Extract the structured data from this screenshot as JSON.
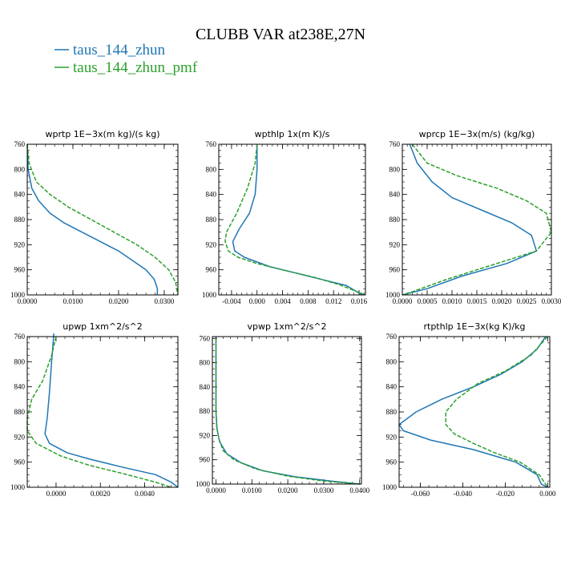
{
  "title": "CLUBB VAR at238E,27N",
  "legend": [
    {
      "label": "taus_144_zhun",
      "color": "#1f77b4",
      "dash": "solid"
    },
    {
      "label": "taus_144_zhun_pmf",
      "color": "#2ca02c",
      "dash": "dashed"
    }
  ],
  "chart_data": [
    {
      "type": "line",
      "title": "wprtp   1E−3x(m kg)/(s kg)",
      "xlim": [
        0,
        0.033
      ],
      "ylim": [
        760,
        1000
      ],
      "xticks": [
        0,
        0.01,
        0.02,
        0.03
      ],
      "xtick_labels": [
        "0.0000",
        "0.0100",
        "0.0200",
        "0.0300"
      ],
      "yticks": [
        760,
        800,
        840,
        880,
        920,
        960,
        1000
      ],
      "series": [
        {
          "name": "taus_144_zhun",
          "points": [
            [
              0,
              760
            ],
            [
              0.0002,
              800
            ],
            [
              0.001,
              830
            ],
            [
              0.0025,
              850
            ],
            [
              0.005,
              870
            ],
            [
              0.008,
              885
            ],
            [
              0.012,
              900
            ],
            [
              0.016,
              915
            ],
            [
              0.02,
              930
            ],
            [
              0.023,
              945
            ],
            [
              0.026,
              960
            ],
            [
              0.0278,
              975
            ],
            [
              0.0285,
              990
            ],
            [
              0.0285,
              1000
            ]
          ]
        },
        {
          "name": "taus_144_zhun_pmf",
          "points": [
            [
              0,
              760
            ],
            [
              0.0004,
              790
            ],
            [
              0.002,
              820
            ],
            [
              0.005,
              840
            ],
            [
              0.009,
              860
            ],
            [
              0.014,
              880
            ],
            [
              0.019,
              900
            ],
            [
              0.024,
              920
            ],
            [
              0.028,
              940
            ],
            [
              0.031,
              960
            ],
            [
              0.0325,
              980
            ],
            [
              0.033,
              1000
            ]
          ]
        }
      ]
    },
    {
      "type": "line",
      "title": "wpthlp   1x(m K)/s",
      "xlim": [
        -0.006,
        0.017
      ],
      "ylim": [
        760,
        1000
      ],
      "xticks": [
        -0.004,
        0,
        0.004,
        0.008,
        0.012,
        0.016
      ],
      "xtick_labels": [
        "-0.004",
        "0.000",
        "0.004",
        "0.008",
        "0.012",
        "0.016"
      ],
      "yticks": [
        760,
        800,
        840,
        880,
        920,
        960,
        1000
      ],
      "series": [
        {
          "name": "taus_144_zhun",
          "points": [
            [
              0,
              760
            ],
            [
              0,
              800
            ],
            [
              -0.0003,
              840
            ],
            [
              -0.0012,
              870
            ],
            [
              -0.0028,
              895
            ],
            [
              -0.0038,
              915
            ],
            [
              -0.0035,
              930
            ],
            [
              -0.002,
              940
            ],
            [
              0.002,
              955
            ],
            [
              0.006,
              965
            ],
            [
              0.01,
              975
            ],
            [
              0.014,
              985
            ],
            [
              0.0165,
              1000
            ]
          ]
        },
        {
          "name": "taus_144_zhun_pmf",
          "points": [
            [
              0,
              760
            ],
            [
              -0.0003,
              790
            ],
            [
              -0.0015,
              830
            ],
            [
              -0.0032,
              870
            ],
            [
              -0.0048,
              900
            ],
            [
              -0.005,
              915
            ],
            [
              -0.0045,
              930
            ],
            [
              -0.003,
              940
            ],
            [
              0,
              950
            ],
            [
              0.004,
              960
            ],
            [
              0.009,
              972
            ],
            [
              0.013,
              984
            ],
            [
              0.017,
              1000
            ]
          ]
        }
      ]
    },
    {
      "type": "line",
      "title": "wprcp   1E−3x(m/s) (kg/kg)",
      "xlim": [
        0,
        0.003
      ],
      "ylim": [
        760,
        1000
      ],
      "xticks": [
        0,
        0.0005,
        0.001,
        0.0015,
        0.002,
        0.0025,
        0.003
      ],
      "xtick_labels": [
        "0.0000",
        "0.0005",
        "0.0010",
        "0.0015",
        "0.0020",
        "0.0025",
        "0.0030"
      ],
      "yticks": [
        760,
        800,
        840,
        880,
        920,
        960,
        1000
      ],
      "series": [
        {
          "name": "taus_144_zhun",
          "points": [
            [
              0.00015,
              760
            ],
            [
              0.0003,
              790
            ],
            [
              0.0006,
              820
            ],
            [
              0.001,
              845
            ],
            [
              0.0016,
              865
            ],
            [
              0.0022,
              885
            ],
            [
              0.0026,
              905
            ],
            [
              0.0027,
              930
            ],
            [
              0.0021,
              950
            ],
            [
              0.0012,
              970
            ],
            [
              0.0005,
              990
            ],
            [
              0,
              1000
            ]
          ]
        },
        {
          "name": "taus_144_zhun_pmf",
          "points": [
            [
              0.0002,
              760
            ],
            [
              0.0005,
              790
            ],
            [
              0.0011,
              810
            ],
            [
              0.0019,
              830
            ],
            [
              0.0025,
              850
            ],
            [
              0.0029,
              870
            ],
            [
              0.003,
              900
            ],
            [
              0.0027,
              930
            ],
            [
              0.0019,
              950
            ],
            [
              0.0009,
              975
            ],
            [
              0.0002,
              995
            ],
            [
              0,
              1000
            ]
          ]
        }
      ]
    },
    {
      "type": "line",
      "title": "upwp   1xm^2/s^2",
      "xlim": [
        -0.0013,
        0.0055
      ],
      "ylim": [
        760,
        1000
      ],
      "xticks": [
        0,
        0.002,
        0.004
      ],
      "xtick_labels": [
        "0.0000",
        "0.0020",
        "0.0040"
      ],
      "yticks": [
        760,
        800,
        840,
        880,
        920,
        960,
        1000
      ],
      "series": [
        {
          "name": "taus_144_zhun",
          "points": [
            [
              -0.0001,
              755
            ],
            [
              -0.0002,
              800
            ],
            [
              -0.0003,
              850
            ],
            [
              -0.0004,
              890
            ],
            [
              -0.0005,
              915
            ],
            [
              -0.0003,
              930
            ],
            [
              0.0005,
              945
            ],
            [
              0.0015,
              955
            ],
            [
              0.003,
              968
            ],
            [
              0.0045,
              980
            ],
            [
              0.0052,
              992
            ],
            [
              0.0055,
              1000
            ]
          ]
        },
        {
          "name": "taus_144_zhun_pmf",
          "points": [
            [
              0,
              760
            ],
            [
              -0.0002,
              790
            ],
            [
              -0.0006,
              830
            ],
            [
              -0.0011,
              860
            ],
            [
              -0.0013,
              890
            ],
            [
              -0.0013,
              910
            ],
            [
              -0.0009,
              930
            ],
            [
              0.0002,
              950
            ],
            [
              0.0015,
              965
            ],
            [
              0.003,
              978
            ],
            [
              0.0045,
              992
            ],
            [
              0.0052,
              1000
            ]
          ]
        }
      ]
    },
    {
      "type": "line",
      "title": "vpwp   1xm^2/s^2",
      "xlim": [
        -0.001,
        0.0405
      ],
      "ylim": [
        757,
        1000
      ],
      "xticks": [
        0,
        0.01,
        0.02,
        0.03,
        0.04
      ],
      "xtick_labels": [
        "0.0000",
        "0.0100",
        "0.0200",
        "0.0300",
        "0.0400"
      ],
      "yticks": [
        760,
        800,
        840,
        880,
        920,
        960,
        1000
      ],
      "series": [
        {
          "name": "taus_144_zhun",
          "points": [
            [
              0,
              760
            ],
            [
              0,
              880
            ],
            [
              0.0003,
              910
            ],
            [
              0.001,
              930
            ],
            [
              0.003,
              950
            ],
            [
              0.007,
              965
            ],
            [
              0.013,
              978
            ],
            [
              0.022,
              988
            ],
            [
              0.032,
              995
            ],
            [
              0.04,
              1000
            ]
          ]
        },
        {
          "name": "taus_144_zhun_pmf",
          "points": [
            [
              0,
              760
            ],
            [
              0,
              880
            ],
            [
              0.0002,
              905
            ],
            [
              0.0008,
              925
            ],
            [
              0.002,
              945
            ],
            [
              0.005,
              960
            ],
            [
              0.011,
              975
            ],
            [
              0.02,
              987
            ],
            [
              0.03,
              995
            ],
            [
              0.04,
              1000
            ]
          ]
        }
      ]
    },
    {
      "type": "line",
      "title": "rtpthlp   1E−3x(kg K)/kg",
      "xlim": [
        -0.07,
        0.001
      ],
      "ylim": [
        760,
        1000
      ],
      "xticks": [
        -0.06,
        -0.04,
        -0.02,
        0
      ],
      "xtick_labels": [
        "-0.060",
        "-0.040",
        "-0.020",
        "0.000"
      ],
      "yticks": [
        760,
        800,
        840,
        880,
        920,
        960,
        1000
      ],
      "series": [
        {
          "name": "taus_144_zhun",
          "points": [
            [
              -0.001,
              760
            ],
            [
              -0.005,
              780
            ],
            [
              -0.012,
              800
            ],
            [
              -0.022,
              820
            ],
            [
              -0.035,
              840
            ],
            [
              -0.05,
              860
            ],
            [
              -0.062,
              880
            ],
            [
              -0.07,
              900
            ],
            [
              -0.068,
              910
            ],
            [
              -0.055,
              925
            ],
            [
              -0.035,
              940
            ],
            [
              -0.015,
              960
            ],
            [
              -0.005,
              980
            ],
            [
              -0.003,
              995
            ],
            [
              0,
              1000
            ]
          ]
        },
        {
          "name": "taus_144_zhun_pmf",
          "points": [
            [
              0,
              760
            ],
            [
              -0.008,
              790
            ],
            [
              -0.02,
              815
            ],
            [
              -0.033,
              835
            ],
            [
              -0.043,
              860
            ],
            [
              -0.048,
              880
            ],
            [
              -0.048,
              900
            ],
            [
              -0.044,
              915
            ],
            [
              -0.035,
              930
            ],
            [
              -0.025,
              945
            ],
            [
              -0.013,
              960
            ],
            [
              -0.004,
              980
            ],
            [
              -0.001,
              995
            ],
            [
              0,
              1000
            ]
          ]
        }
      ]
    }
  ]
}
